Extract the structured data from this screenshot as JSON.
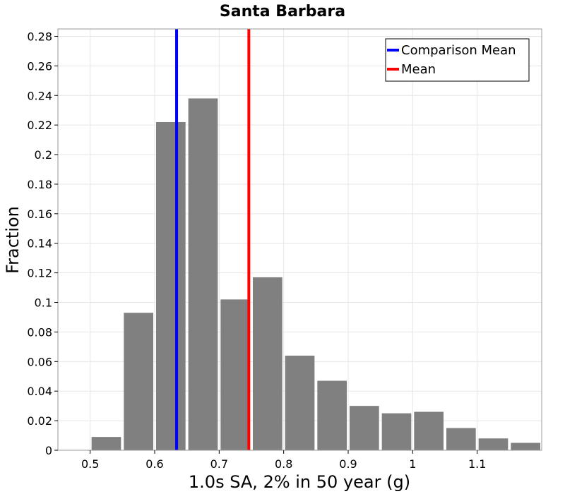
{
  "chart_data": {
    "type": "bar",
    "title": "Santa Barbara",
    "xlabel": "1.0s SA, 2% in 50 year (g)",
    "ylabel": "Fraction",
    "xlim": [
      0.45,
      1.2
    ],
    "ylim": [
      0,
      0.285
    ],
    "grid": true,
    "legend_position": "top-right",
    "bin_width": 0.05,
    "x_ticks": [
      {
        "value": 0.5,
        "label": "0.5"
      },
      {
        "value": 0.6,
        "label": "0.6"
      },
      {
        "value": 0.7,
        "label": "0.7"
      },
      {
        "value": 0.8,
        "label": "0.8"
      },
      {
        "value": 0.9,
        "label": "0.9"
      },
      {
        "value": 1.0,
        "label": "1"
      },
      {
        "value": 1.1,
        "label": "1.1"
      }
    ],
    "y_ticks": [
      {
        "value": 0,
        "label": "0"
      },
      {
        "value": 0.02,
        "label": "0.02"
      },
      {
        "value": 0.04,
        "label": "0.04"
      },
      {
        "value": 0.06,
        "label": "0.06"
      },
      {
        "value": 0.08,
        "label": "0.08"
      },
      {
        "value": 0.1,
        "label": "0.1"
      },
      {
        "value": 0.12,
        "label": "0.12"
      },
      {
        "value": 0.14,
        "label": "0.14"
      },
      {
        "value": 0.16,
        "label": "0.16"
      },
      {
        "value": 0.18,
        "label": "0.18"
      },
      {
        "value": 0.2,
        "label": "0.2"
      },
      {
        "value": 0.22,
        "label": "0.22"
      },
      {
        "value": 0.24,
        "label": "0.24"
      },
      {
        "value": 0.26,
        "label": "0.26"
      },
      {
        "value": 0.28,
        "label": "0.28"
      }
    ],
    "bars": [
      {
        "x": 0.525,
        "value": 0.009
      },
      {
        "x": 0.575,
        "value": 0.093
      },
      {
        "x": 0.625,
        "value": 0.222
      },
      {
        "x": 0.675,
        "value": 0.238
      },
      {
        "x": 0.725,
        "value": 0.102
      },
      {
        "x": 0.775,
        "value": 0.117
      },
      {
        "x": 0.825,
        "value": 0.064
      },
      {
        "x": 0.875,
        "value": 0.047
      },
      {
        "x": 0.925,
        "value": 0.03
      },
      {
        "x": 0.975,
        "value": 0.025
      },
      {
        "x": 1.025,
        "value": 0.026
      },
      {
        "x": 1.075,
        "value": 0.015
      },
      {
        "x": 1.125,
        "value": 0.008
      },
      {
        "x": 1.175,
        "value": 0.005
      }
    ],
    "bar_color": "#808080",
    "vlines": [
      {
        "name": "Comparison Mean",
        "x": 0.634,
        "color": "#0000ff"
      },
      {
        "name": "Mean",
        "x": 0.746,
        "color": "#ff0000"
      }
    ]
  }
}
